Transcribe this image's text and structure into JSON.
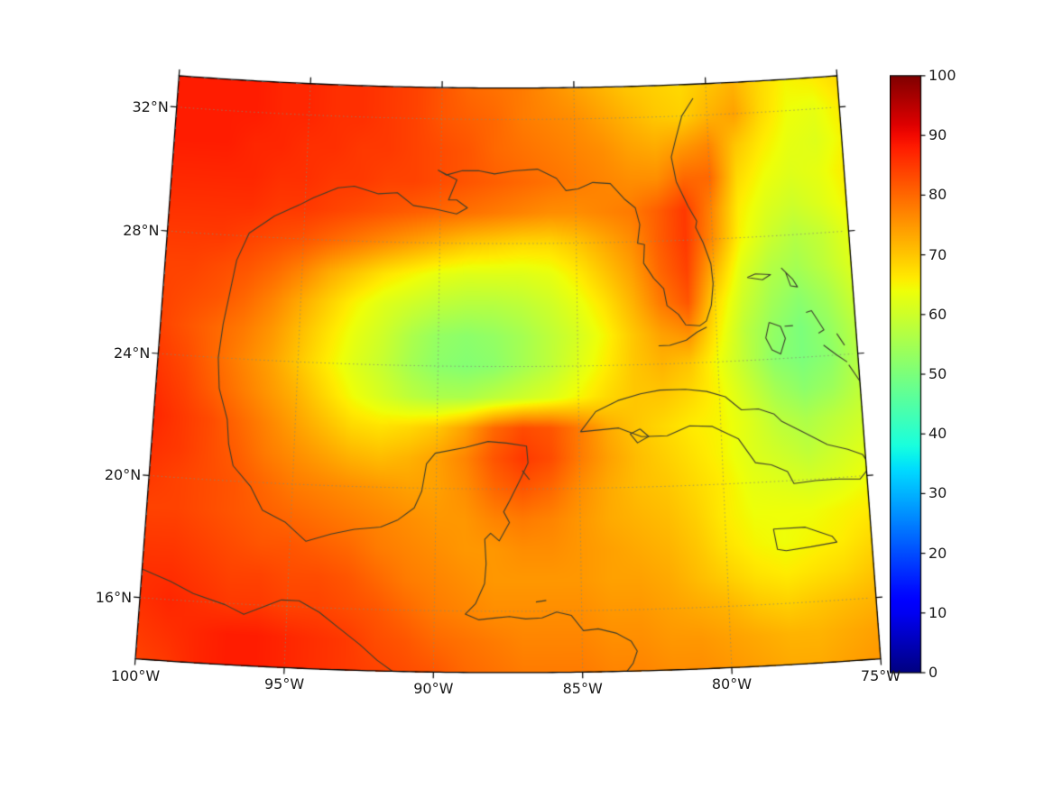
{
  "figure": {
    "background": "#ffffff",
    "title": ""
  },
  "chart_data": {
    "type": "heatmap",
    "title": "",
    "xlabel": "",
    "ylabel": "",
    "projection": "lambert-conformal-conic",
    "extent": {
      "lon_min": -100,
      "lon_max": -75,
      "lat_min": 14,
      "lat_max": 33
    },
    "colormap": "jet",
    "vmin": 0,
    "vmax": 100,
    "lons": [
      -100,
      -99,
      -98,
      -97,
      -96,
      -95,
      -94,
      -93,
      -92,
      -91,
      -90,
      -89,
      -88,
      -87,
      -86,
      -85,
      -84,
      -83,
      -82,
      -81,
      -80,
      -79,
      -78,
      -77,
      -76,
      -75
    ],
    "lats": [
      33,
      32,
      31,
      30,
      29,
      28,
      27,
      26,
      25,
      24,
      23,
      22,
      21,
      20,
      19,
      18,
      17,
      16,
      15,
      14
    ],
    "values": [
      [
        88,
        88,
        88,
        88,
        87,
        87,
        86,
        86,
        85,
        84,
        82,
        80,
        79,
        78,
        76,
        74,
        72,
        70,
        69,
        68,
        70,
        72,
        68,
        65,
        66,
        68
      ],
      [
        88,
        88,
        88,
        88,
        87,
        87,
        86,
        86,
        85,
        84,
        82,
        81,
        80,
        78,
        77,
        76,
        74,
        72,
        70,
        69,
        72,
        74,
        68,
        64,
        63,
        66
      ],
      [
        88,
        88,
        88,
        87,
        87,
        86,
        86,
        85,
        85,
        84,
        83,
        82,
        80,
        79,
        78,
        77,
        76,
        74,
        73,
        75,
        77,
        70,
        66,
        63,
        62,
        65
      ],
      [
        87,
        87,
        87,
        87,
        86,
        86,
        85,
        85,
        84,
        84,
        83,
        82,
        81,
        80,
        79,
        78,
        77,
        76,
        76,
        80,
        80,
        68,
        64,
        62,
        63,
        66
      ],
      [
        86,
        86,
        86,
        86,
        85,
        85,
        84,
        83,
        82,
        81,
        80,
        79,
        78,
        77,
        76,
        76,
        77,
        78,
        81,
        85,
        77,
        66,
        62,
        60,
        62,
        65
      ],
      [
        85,
        85,
        85,
        84,
        83,
        82,
        80,
        78,
        76,
        74,
        72,
        70,
        69,
        68,
        68,
        70,
        73,
        76,
        81,
        85,
        76,
        65,
        60,
        57,
        59,
        63
      ],
      [
        84,
        84,
        83,
        82,
        80,
        77,
        73,
        70,
        67,
        65,
        63,
        62,
        62,
        62,
        63,
        66,
        70,
        74,
        80,
        84,
        72,
        62,
        57,
        55,
        58,
        62
      ],
      [
        84,
        83,
        82,
        80,
        77,
        73,
        69,
        65,
        62,
        60,
        58,
        57,
        57,
        58,
        60,
        63,
        67,
        72,
        78,
        82,
        68,
        60,
        55,
        52,
        55,
        60
      ],
      [
        84,
        82,
        80,
        78,
        75,
        71,
        67,
        63,
        60,
        56,
        53,
        52,
        53,
        55,
        58,
        61,
        65,
        70,
        74,
        76,
        66,
        58,
        53,
        50,
        53,
        58
      ],
      [
        85,
        83,
        80,
        77,
        74,
        70,
        66,
        62,
        59,
        55,
        52,
        51,
        52,
        55,
        58,
        62,
        66,
        70,
        72,
        70,
        64,
        58,
        52,
        50,
        52,
        57
      ],
      [
        86,
        84,
        81,
        78,
        75,
        72,
        68,
        64,
        61,
        58,
        56,
        56,
        58,
        60,
        62,
        65,
        68,
        70,
        70,
        68,
        65,
        60,
        55,
        52,
        54,
        58
      ],
      [
        87,
        85,
        83,
        80,
        77,
        74,
        71,
        68,
        67,
        68,
        70,
        74,
        80,
        83,
        82,
        78,
        73,
        70,
        68,
        66,
        65,
        62,
        58,
        56,
        58,
        60
      ],
      [
        86,
        85,
        83,
        81,
        78,
        76,
        74,
        72,
        71,
        72,
        74,
        77,
        82,
        85,
        83,
        78,
        74,
        71,
        69,
        67,
        65,
        62,
        60,
        58,
        60,
        62
      ],
      [
        85,
        84,
        83,
        82,
        80,
        78,
        77,
        76,
        75,
        74,
        74,
        76,
        80,
        82,
        80,
        76,
        73,
        71,
        70,
        68,
        66,
        63,
        62,
        61,
        62,
        64
      ],
      [
        84,
        84,
        83,
        82,
        81,
        80,
        79,
        78,
        77,
        76,
        75,
        75,
        77,
        78,
        77,
        75,
        73,
        72,
        71,
        69,
        66,
        64,
        64,
        64,
        65,
        66
      ],
      [
        85,
        85,
        84,
        83,
        82,
        82,
        81,
        80,
        78,
        77,
        76,
        75,
        75,
        76,
        76,
        75,
        74,
        73,
        72,
        70,
        67,
        65,
        64,
        65,
        66,
        68
      ],
      [
        86,
        86,
        85,
        84,
        84,
        83,
        83,
        82,
        80,
        78,
        77,
        76,
        75,
        75,
        75,
        75,
        74,
        74,
        73,
        71,
        69,
        67,
        66,
        67,
        68,
        70
      ],
      [
        86,
        87,
        86,
        85,
        85,
        84,
        84,
        83,
        82,
        80,
        78,
        77,
        76,
        76,
        76,
        76,
        75,
        75,
        74,
        73,
        72,
        70,
        69,
        70,
        71,
        72
      ],
      [
        85,
        86,
        87,
        88,
        88,
        87,
        86,
        85,
        83,
        82,
        80,
        79,
        78,
        77,
        77,
        77,
        76,
        76,
        75,
        75,
        74,
        73,
        72,
        72,
        73,
        74
      ],
      [
        84,
        85,
        87,
        88,
        88,
        87,
        86,
        85,
        84,
        83,
        82,
        80,
        79,
        78,
        78,
        78,
        77,
        77,
        76,
        76,
        75,
        74,
        73,
        73,
        74,
        75
      ]
    ],
    "x_ticks": [
      {
        "lon": -100,
        "label": "100°W"
      },
      {
        "lon": -95,
        "label": "95°W"
      },
      {
        "lon": -90,
        "label": "90°W"
      },
      {
        "lon": -85,
        "label": "85°W"
      },
      {
        "lon": -80,
        "label": "80°W"
      },
      {
        "lon": -75,
        "label": "75°W"
      }
    ],
    "y_ticks": [
      {
        "lat": 32,
        "label": "32°N"
      },
      {
        "lat": 28,
        "label": "28°N"
      },
      {
        "lat": 24,
        "label": "24°N"
      },
      {
        "lat": 20,
        "label": "20°N"
      },
      {
        "lat": 16,
        "label": "16°N"
      }
    ],
    "gridline_lons": [
      -95,
      -90,
      -85,
      -80
    ],
    "gridline_lats": [
      16,
      20,
      24,
      28,
      32
    ],
    "colorbar": {
      "ticks": [
        {
          "value": 0,
          "label": "0"
        },
        {
          "value": 10,
          "label": "10"
        },
        {
          "value": 20,
          "label": "20"
        },
        {
          "value": 30,
          "label": "30"
        },
        {
          "value": 40,
          "label": "40"
        },
        {
          "value": 50,
          "label": "50"
        },
        {
          "value": 60,
          "label": "60"
        },
        {
          "value": 70,
          "label": "70"
        },
        {
          "value": 80,
          "label": "80"
        },
        {
          "value": 90,
          "label": "90"
        },
        {
          "value": 100,
          "label": "100"
        }
      ]
    },
    "colors": {
      "coastline": "#3e3e2c",
      "gridline": "#8a8a70",
      "frame": "#000000",
      "tick_label": "#1a1a1a"
    },
    "coastlines": [
      {
        "name": "us-gulf-atlantic-coast",
        "pts": [
          -97.6,
          26.0,
          -97.4,
          27.2,
          -97.0,
          28.1,
          -96.1,
          28.7,
          -95.2,
          29.1,
          -94.7,
          29.35,
          -93.8,
          29.7,
          -93.2,
          29.77,
          -92.3,
          29.55,
          -91.6,
          29.6,
          -91.0,
          29.2,
          -90.2,
          29.1,
          -89.4,
          28.95,
          -89.0,
          29.15,
          -89.4,
          29.4,
          -89.7,
          29.4,
          -89.4,
          30.05,
          -90.1,
          30.35,
          -89.8,
          30.2,
          -89.2,
          30.35,
          -88.6,
          30.35,
          -88.0,
          30.25,
          -87.3,
          30.35,
          -86.4,
          30.4,
          -85.7,
          30.1,
          -85.35,
          29.7,
          -84.9,
          29.75,
          -84.35,
          29.95,
          -83.7,
          29.9,
          -83.2,
          29.4,
          -82.8,
          29.1,
          -82.65,
          28.55,
          -82.75,
          27.95,
          -82.5,
          27.9,
          -82.55,
          27.3,
          -82.2,
          26.8,
          -81.85,
          26.45,
          -81.75,
          25.9,
          -81.35,
          25.6,
          -81.1,
          25.25,
          -80.6,
          25.2,
          -80.35,
          25.35,
          -80.15,
          25.85,
          -80.05,
          26.55,
          -80.1,
          27.2,
          -80.35,
          27.9,
          -80.6,
          28.4,
          -80.55,
          28.6,
          -80.85,
          29.1,
          -81.25,
          29.9,
          -81.4,
          30.7,
          -81.2,
          31.3,
          -80.95,
          32.0,
          -80.5,
          32.55
        ]
      },
      {
        "name": "mexico-gulf-central-america-coast",
        "pts": [
          -97.6,
          26.0,
          -97.75,
          25.1,
          -97.85,
          24.0,
          -97.75,
          23.0,
          -97.4,
          22.0,
          -97.3,
          21.2,
          -97.1,
          20.5,
          -96.45,
          19.85,
          -96.0,
          19.1,
          -95.2,
          18.75,
          -94.45,
          18.15,
          -93.6,
          18.42,
          -92.8,
          18.6,
          -91.9,
          18.7,
          -91.3,
          18.95,
          -90.75,
          19.35,
          -90.5,
          19.9,
          -90.35,
          20.8,
          -90.05,
          21.15,
          -89.0,
          21.35,
          -88.2,
          21.55,
          -87.55,
          21.5,
          -86.85,
          21.4,
          -86.8,
          20.85,
          -87.05,
          20.35,
          -87.45,
          19.6,
          -87.65,
          19.25,
          -87.45,
          18.9,
          -87.8,
          18.3,
          -88.1,
          18.55,
          -88.3,
          18.35,
          -88.25,
          17.55,
          -88.3,
          16.9,
          -88.6,
          16.25,
          -88.95,
          15.9,
          -88.5,
          15.72,
          -87.95,
          15.78,
          -87.45,
          15.83,
          -86.9,
          15.75,
          -86.35,
          15.78,
          -85.85,
          15.97,
          -85.35,
          15.85,
          -84.95,
          15.35,
          -84.45,
          15.4,
          -83.85,
          15.25,
          -83.35,
          14.98,
          -83.15,
          14.65,
          -83.3,
          14.25,
          -83.55,
          13.95
        ]
      },
      {
        "name": "pacific-coast",
        "pts": [
          -100.2,
          17.0,
          -99.0,
          16.6,
          -98.2,
          16.25,
          -97.1,
          15.95,
          -96.45,
          15.67,
          -95.2,
          16.2,
          -94.6,
          16.2,
          -93.9,
          15.85,
          -93.2,
          15.35,
          -92.5,
          14.85,
          -91.9,
          14.35,
          -91.3,
          13.95
        ]
      },
      {
        "name": "cuba",
        "pts": [
          -84.95,
          21.85,
          -84.4,
          22.5,
          -83.6,
          22.85,
          -82.8,
          23.05,
          -82.1,
          23.15,
          -81.2,
          23.15,
          -80.45,
          23.05,
          -79.8,
          22.85,
          -79.25,
          22.4,
          -78.65,
          22.4,
          -78.1,
          22.2,
          -77.85,
          21.95,
          -77.1,
          21.55,
          -76.3,
          21.1,
          -75.6,
          20.9,
          -75.1,
          20.7,
          -74.85,
          20.3,
          -75.25,
          19.9,
          -76.0,
          19.95,
          -76.8,
          19.95,
          -77.55,
          19.9,
          -77.75,
          20.3,
          -78.3,
          20.55,
          -78.85,
          20.65,
          -79.4,
          21.45,
          -80.3,
          21.9,
          -81.1,
          21.95,
          -81.9,
          21.65,
          -82.8,
          21.65,
          -83.6,
          21.95,
          -84.3,
          21.9,
          -84.95,
          21.85
        ]
      },
      {
        "name": "isle-of-youth",
        "pts": [
          -82.85,
          21.9,
          -82.55,
          21.65,
          -82.95,
          21.45,
          -83.2,
          21.75,
          -82.85,
          21.9
        ]
      },
      {
        "name": "jamaica",
        "pts": [
          -78.35,
          18.45,
          -77.25,
          18.45,
          -76.35,
          18.1,
          -76.2,
          17.9,
          -77.1,
          17.8,
          -77.95,
          17.72,
          -78.25,
          17.78,
          -78.35,
          18.45
        ]
      },
      {
        "name": "grand-bahama",
        "pts": [
          -78.8,
          26.7,
          -78.25,
          26.6,
          -77.95,
          26.75,
          -78.5,
          26.8,
          -78.8,
          26.7
        ]
      },
      {
        "name": "abaco",
        "pts": [
          -77.55,
          26.95,
          -77.15,
          26.55,
          -77.0,
          26.3,
          -77.25,
          26.35,
          -77.4,
          26.8,
          -77.55,
          26.95
        ]
      },
      {
        "name": "andros",
        "pts": [
          -78.1,
          25.2,
          -77.7,
          25.05,
          -77.55,
          24.65,
          -77.75,
          24.15,
          -78.05,
          24.3,
          -78.25,
          24.7,
          -78.1,
          25.2
        ]
      },
      {
        "name": "new-providence",
        "pts": [
          -77.55,
          25.05,
          -77.25,
          25.05
        ]
      },
      {
        "name": "eleuthera",
        "pts": [
          -76.75,
          25.45,
          -76.55,
          25.5,
          -76.15,
          24.85,
          -76.35,
          24.75
        ]
      },
      {
        "name": "exuma-chain",
        "pts": [
          -76.2,
          24.35,
          -75.75,
          24.0,
          -75.4,
          23.75
        ]
      },
      {
        "name": "cat-island",
        "pts": [
          -75.7,
          24.7,
          -75.45,
          24.3
        ]
      },
      {
        "name": "long-island-bahamas",
        "pts": [
          -75.35,
          23.65,
          -75.0,
          23.1
        ]
      },
      {
        "name": "florida-keys",
        "pts": [
          -80.35,
          25.15,
          -80.7,
          25.0,
          -81.1,
          24.75,
          -81.7,
          24.6,
          -82.1,
          24.6
        ]
      },
      {
        "name": "cozumel",
        "pts": [
          -87.0,
          20.6,
          -86.75,
          20.3
        ]
      },
      {
        "name": "bay-islands-honduras",
        "pts": [
          -86.55,
          16.3,
          -86.2,
          16.35
        ]
      }
    ]
  }
}
